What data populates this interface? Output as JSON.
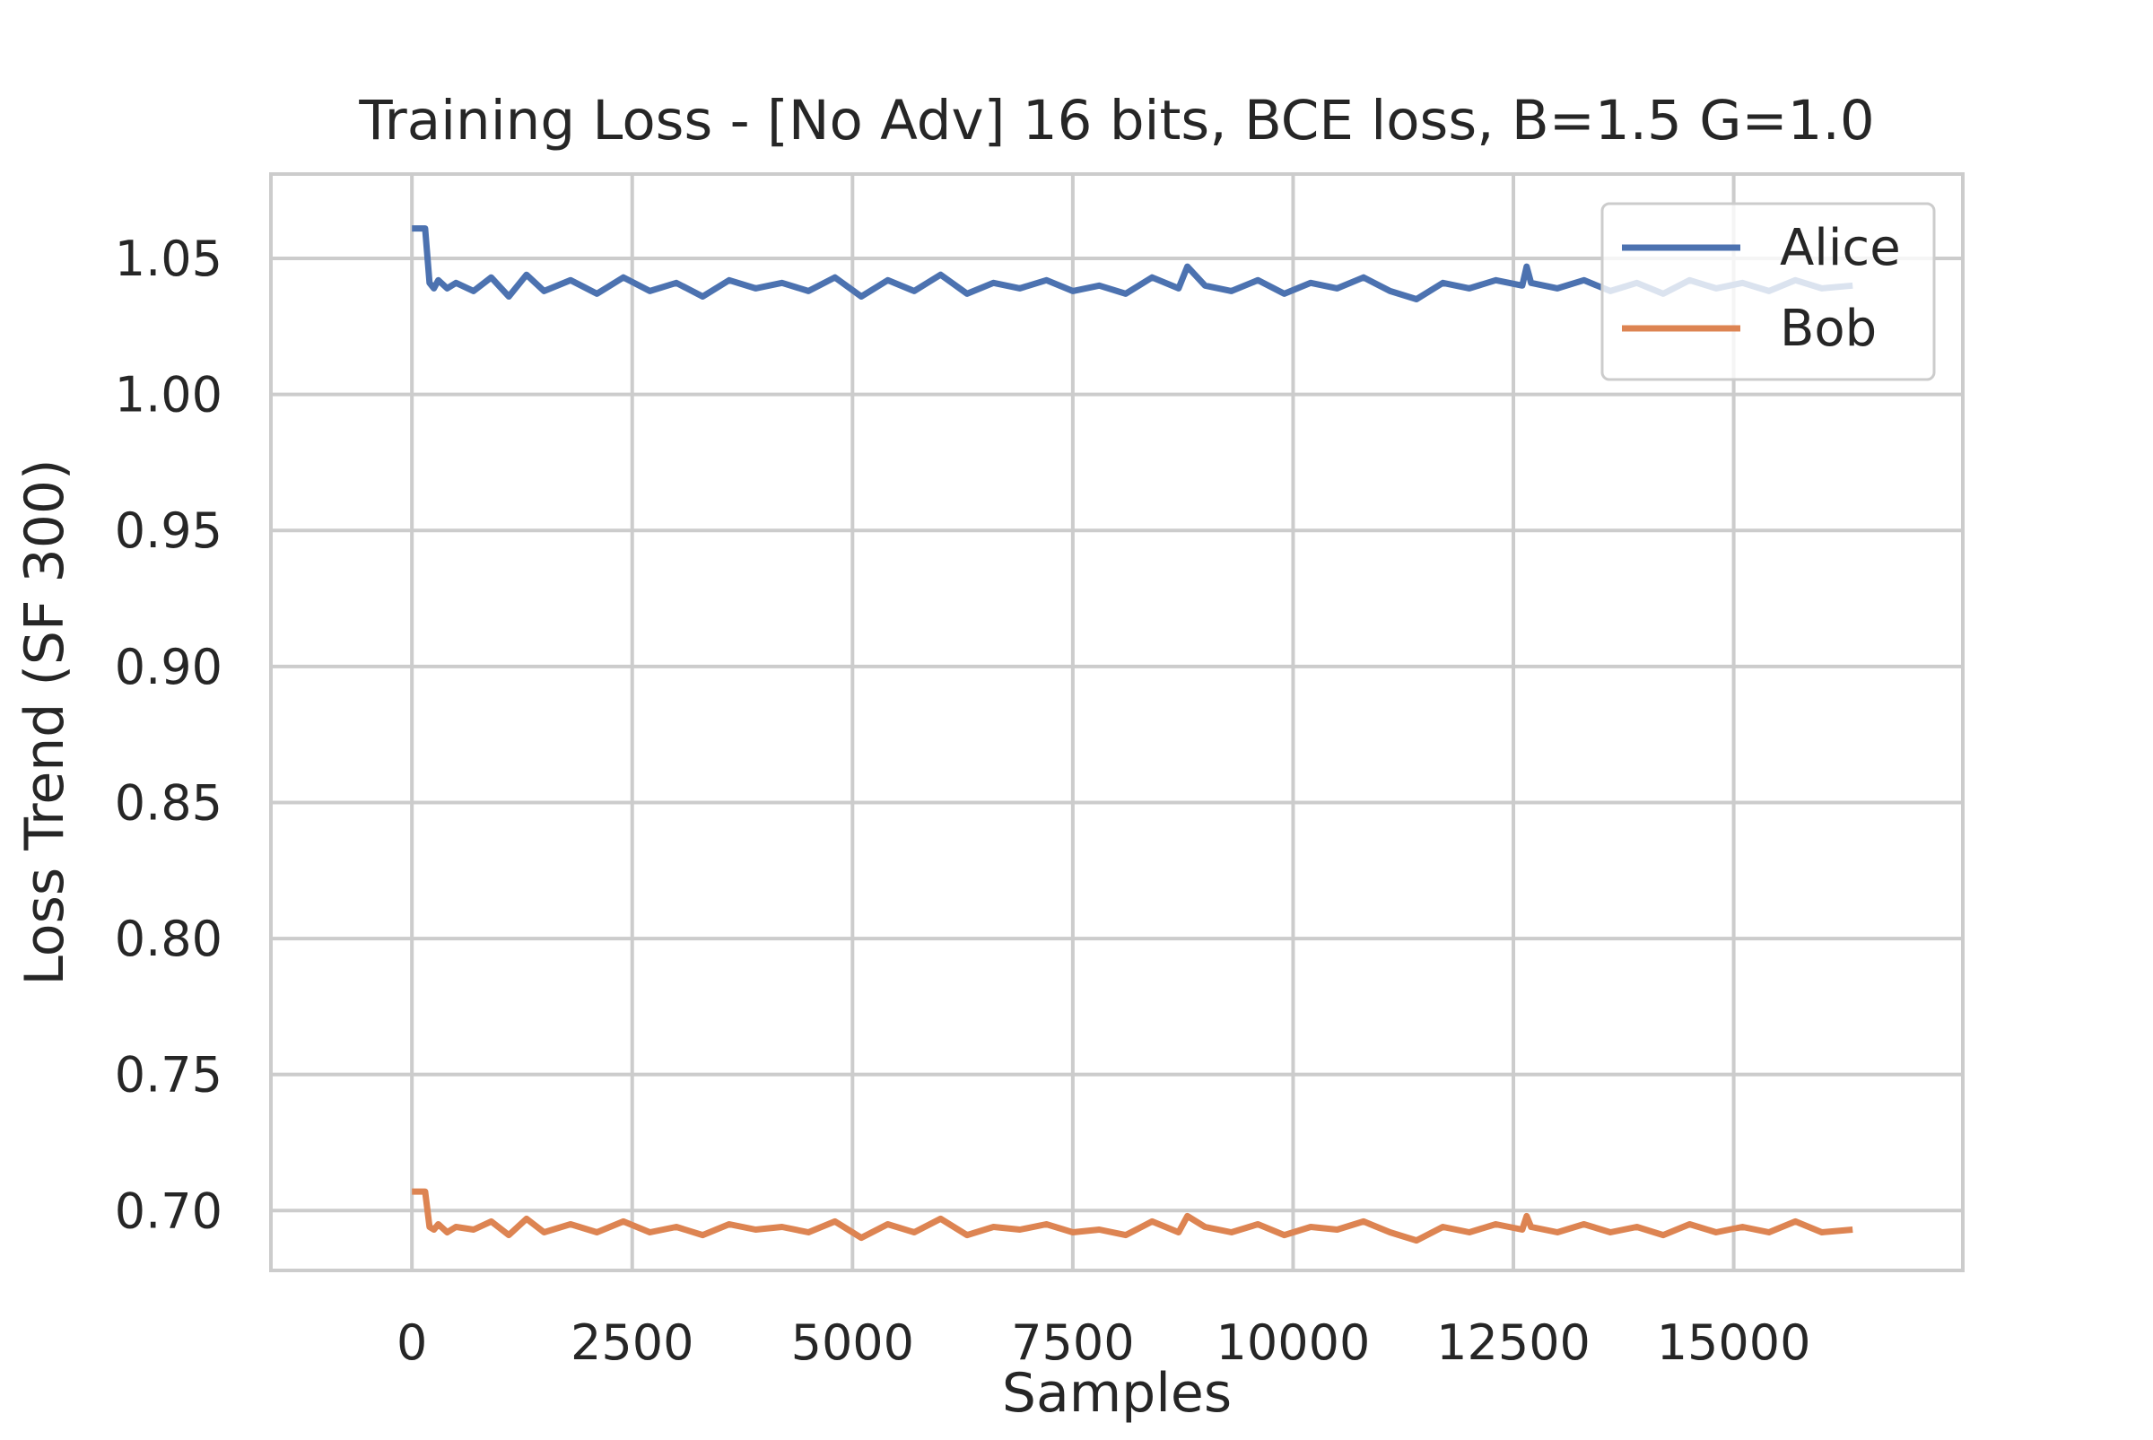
{
  "chart_data": {
    "type": "line",
    "title": "Training Loss - [No Adv] 16 bits, BCE loss, B=1.5 G=1.0",
    "xlabel": "Samples",
    "ylabel": "Loss Trend (SF 300)",
    "xlim": [
      -1600,
      17600
    ],
    "ylim": [
      0.678,
      1.081
    ],
    "x_ticks": [
      0,
      2500,
      5000,
      7500,
      10000,
      12500,
      15000
    ],
    "x_tick_labels": [
      "0",
      "2500",
      "5000",
      "7500",
      "10000",
      "12500",
      "15000"
    ],
    "y_ticks": [
      0.7,
      0.75,
      0.8,
      0.85,
      0.9,
      0.95,
      1.0,
      1.05
    ],
    "y_tick_labels": [
      "0.70",
      "0.75",
      "0.80",
      "0.85",
      "0.90",
      "0.95",
      "1.00",
      "1.05"
    ],
    "grid": true,
    "legend": {
      "position": "top-right",
      "entries": [
        "Alice",
        "Bob"
      ]
    },
    "series": [
      {
        "name": "Alice",
        "color": "#4c72b0",
        "x": [
          0,
          150,
          200,
          250,
          300,
          400,
          500,
          700,
          900,
          1100,
          1300,
          1500,
          1800,
          2100,
          2400,
          2700,
          3000,
          3300,
          3600,
          3900,
          4200,
          4500,
          4800,
          5100,
          5400,
          5700,
          6000,
          6300,
          6600,
          6900,
          7200,
          7500,
          7800,
          8100,
          8400,
          8700,
          8800,
          9000,
          9300,
          9600,
          9900,
          10200,
          10500,
          10800,
          11100,
          11400,
          11700,
          12000,
          12300,
          12600,
          12650,
          12700,
          13000,
          13300,
          13600,
          13900,
          14200,
          14500,
          14800,
          15100,
          15400,
          15700,
          16000,
          16350
        ],
        "y": [
          1.061,
          1.061,
          1.041,
          1.039,
          1.042,
          1.039,
          1.041,
          1.038,
          1.043,
          1.036,
          1.044,
          1.038,
          1.042,
          1.037,
          1.043,
          1.038,
          1.041,
          1.036,
          1.042,
          1.039,
          1.041,
          1.038,
          1.043,
          1.036,
          1.042,
          1.038,
          1.044,
          1.037,
          1.041,
          1.039,
          1.042,
          1.038,
          1.04,
          1.037,
          1.043,
          1.039,
          1.047,
          1.04,
          1.038,
          1.042,
          1.037,
          1.041,
          1.039,
          1.043,
          1.038,
          1.035,
          1.041,
          1.039,
          1.042,
          1.04,
          1.047,
          1.041,
          1.039,
          1.042,
          1.038,
          1.041,
          1.037,
          1.042,
          1.039,
          1.041,
          1.038,
          1.042,
          1.039,
          1.04
        ]
      },
      {
        "name": "Bob",
        "color": "#dd8452",
        "x": [
          0,
          150,
          200,
          250,
          300,
          400,
          500,
          700,
          900,
          1100,
          1300,
          1500,
          1800,
          2100,
          2400,
          2700,
          3000,
          3300,
          3600,
          3900,
          4200,
          4500,
          4800,
          5100,
          5400,
          5700,
          6000,
          6300,
          6600,
          6900,
          7200,
          7500,
          7800,
          8100,
          8400,
          8700,
          8800,
          9000,
          9300,
          9600,
          9900,
          10200,
          10500,
          10800,
          11100,
          11400,
          11700,
          12000,
          12300,
          12600,
          12650,
          12700,
          13000,
          13300,
          13600,
          13900,
          14200,
          14500,
          14800,
          15100,
          15400,
          15700,
          16000,
          16350
        ],
        "y": [
          0.707,
          0.707,
          0.694,
          0.693,
          0.695,
          0.692,
          0.694,
          0.693,
          0.696,
          0.691,
          0.697,
          0.692,
          0.695,
          0.692,
          0.696,
          0.692,
          0.694,
          0.691,
          0.695,
          0.693,
          0.694,
          0.692,
          0.696,
          0.69,
          0.695,
          0.692,
          0.697,
          0.691,
          0.694,
          0.693,
          0.695,
          0.692,
          0.693,
          0.691,
          0.696,
          0.692,
          0.698,
          0.694,
          0.692,
          0.695,
          0.691,
          0.694,
          0.693,
          0.696,
          0.692,
          0.689,
          0.694,
          0.692,
          0.695,
          0.693,
          0.698,
          0.694,
          0.692,
          0.695,
          0.692,
          0.694,
          0.691,
          0.695,
          0.692,
          0.694,
          0.692,
          0.696,
          0.692,
          0.693
        ]
      }
    ]
  }
}
